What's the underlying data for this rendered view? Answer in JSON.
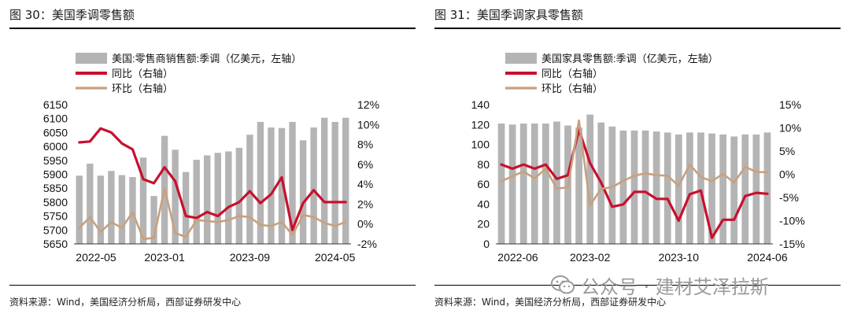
{
  "left": {
    "title": "图 30：美国季调零售额",
    "source": "资料来源：Wind，美国经济分析局，西部证券研发中心",
    "legend": [
      "美国:零售商销售额:季调（亿美元，左轴）",
      "同比（右轴）",
      "环比（右轴）"
    ],
    "chart_data": {
      "type": "bar+line",
      "x_tick_labels": [
        "2022-05",
        "2023-01",
        "2023-09",
        "2024-05"
      ],
      "x_tick_index": [
        0,
        8,
        16,
        24
      ],
      "left_axis": {
        "min": 5650,
        "max": 6150,
        "step": 50,
        "tick_labels": [
          "5650",
          "5700",
          "5750",
          "5800",
          "5850",
          "5900",
          "5950",
          "6000",
          "6050",
          "6100",
          "6150"
        ]
      },
      "right_axis": {
        "min": -2,
        "max": 12,
        "step": 2,
        "tick_labels": [
          "-2%",
          "0%",
          "2%",
          "4%",
          "6%",
          "8%",
          "10%",
          "12%"
        ]
      },
      "series": [
        {
          "name": "美国:零售商销售额:季调（亿美元，左轴）",
          "kind": "bar",
          "axis": "left",
          "color": "#b4b4b4",
          "values": [
            5895,
            5938,
            5895,
            5912,
            5897,
            5890,
            5960,
            5822,
            6038,
            5988,
            5908,
            5952,
            5968,
            5977,
            5982,
            5995,
            6042,
            6088,
            6068,
            6066,
            6088,
            6022,
            6068,
            6103,
            6088,
            6103
          ]
        },
        {
          "name": "同比（右轴）",
          "kind": "line",
          "axis": "right",
          "color": "#c8102e",
          "values": [
            8.2,
            8.3,
            9.6,
            9.2,
            8.1,
            7.5,
            4.5,
            4.1,
            5.7,
            4.3,
            0.8,
            0.6,
            1.2,
            0.8,
            1.7,
            2.2,
            3.3,
            2.1,
            3.0,
            4.7,
            -0.6,
            2.1,
            3.4,
            2.2,
            2.2,
            2.2
          ]
        },
        {
          "name": "环比（右轴）",
          "kind": "line",
          "axis": "right",
          "color": "#c9a07c",
          "values": [
            -0.4,
            0.7,
            -0.8,
            0.2,
            -0.4,
            1.2,
            -1.5,
            -1.4,
            3.6,
            -0.9,
            -1.3,
            0.4,
            0.3,
            0.2,
            0.4,
            0.8,
            0.7,
            -0.1,
            -0.2,
            0.2,
            -1.1,
            0.9,
            0.7,
            0.1,
            -0.2,
            0.2
          ]
        }
      ]
    }
  },
  "right": {
    "title": "图 31：美国季调家具零售额",
    "source": "资料来源：Wind，美国经济分析局，西部证券研发中心",
    "legend": [
      "美国家具零售额:季调（亿美元，左轴）",
      "同比（右轴）",
      "环比（右轴）"
    ],
    "chart_data": {
      "type": "bar+line",
      "x_tick_labels": [
        "2022-06",
        "2023-02",
        "2023-10",
        "2024-06"
      ],
      "x_tick_index": [
        0,
        8,
        16,
        24
      ],
      "left_axis": {
        "min": 0,
        "max": 140,
        "step": 20,
        "tick_labels": [
          "0",
          "20",
          "40",
          "60",
          "80",
          "100",
          "120",
          "140"
        ]
      },
      "right_axis": {
        "min": -15,
        "max": 15,
        "step": 5,
        "tick_labels": [
          "-15%",
          "-10%",
          "-5%",
          "0%",
          "5%",
          "10%",
          "15%"
        ]
      },
      "series": [
        {
          "name": "美国家具零售额:季调（亿美元，左轴）",
          "kind": "bar",
          "axis": "left",
          "color": "#b4b4b4",
          "values": [
            121,
            120,
            121,
            121,
            121,
            123,
            119,
            117,
            130,
            122,
            118,
            114,
            114,
            114,
            113,
            112,
            110,
            112,
            112,
            111,
            110,
            108,
            110,
            110,
            112
          ]
        },
        {
          "name": "同比（右轴）",
          "kind": "line",
          "axis": "right",
          "color": "#c8102e",
          "values": [
            2.1,
            1.2,
            2.1,
            1.2,
            2.1,
            -1.0,
            -0.2,
            9.6,
            2.4,
            -1.8,
            -7.0,
            -6.5,
            -3.8,
            -3.8,
            -5.3,
            -5.3,
            -10.0,
            -4.3,
            -3.5,
            -13.7,
            -9.8,
            -9.8,
            -4.7,
            -4.0,
            -4.2
          ]
        },
        {
          "name": "环比（右轴）",
          "kind": "line",
          "axis": "right",
          "color": "#c9a07c",
          "values": [
            -1.5,
            -0.4,
            0.6,
            -0.9,
            1.2,
            -3.1,
            -2.8,
            11.6,
            -6.7,
            -3.1,
            -2.8,
            -1.4,
            -0.3,
            0.2,
            -0.2,
            -0.3,
            -2.5,
            2.1,
            -0.6,
            -1.5,
            0.1,
            -1.8,
            1.6,
            0.5,
            0.4
          ]
        }
      ]
    }
  },
  "watermark": {
    "text": "公众号 · 建材艾泽拉斯"
  }
}
